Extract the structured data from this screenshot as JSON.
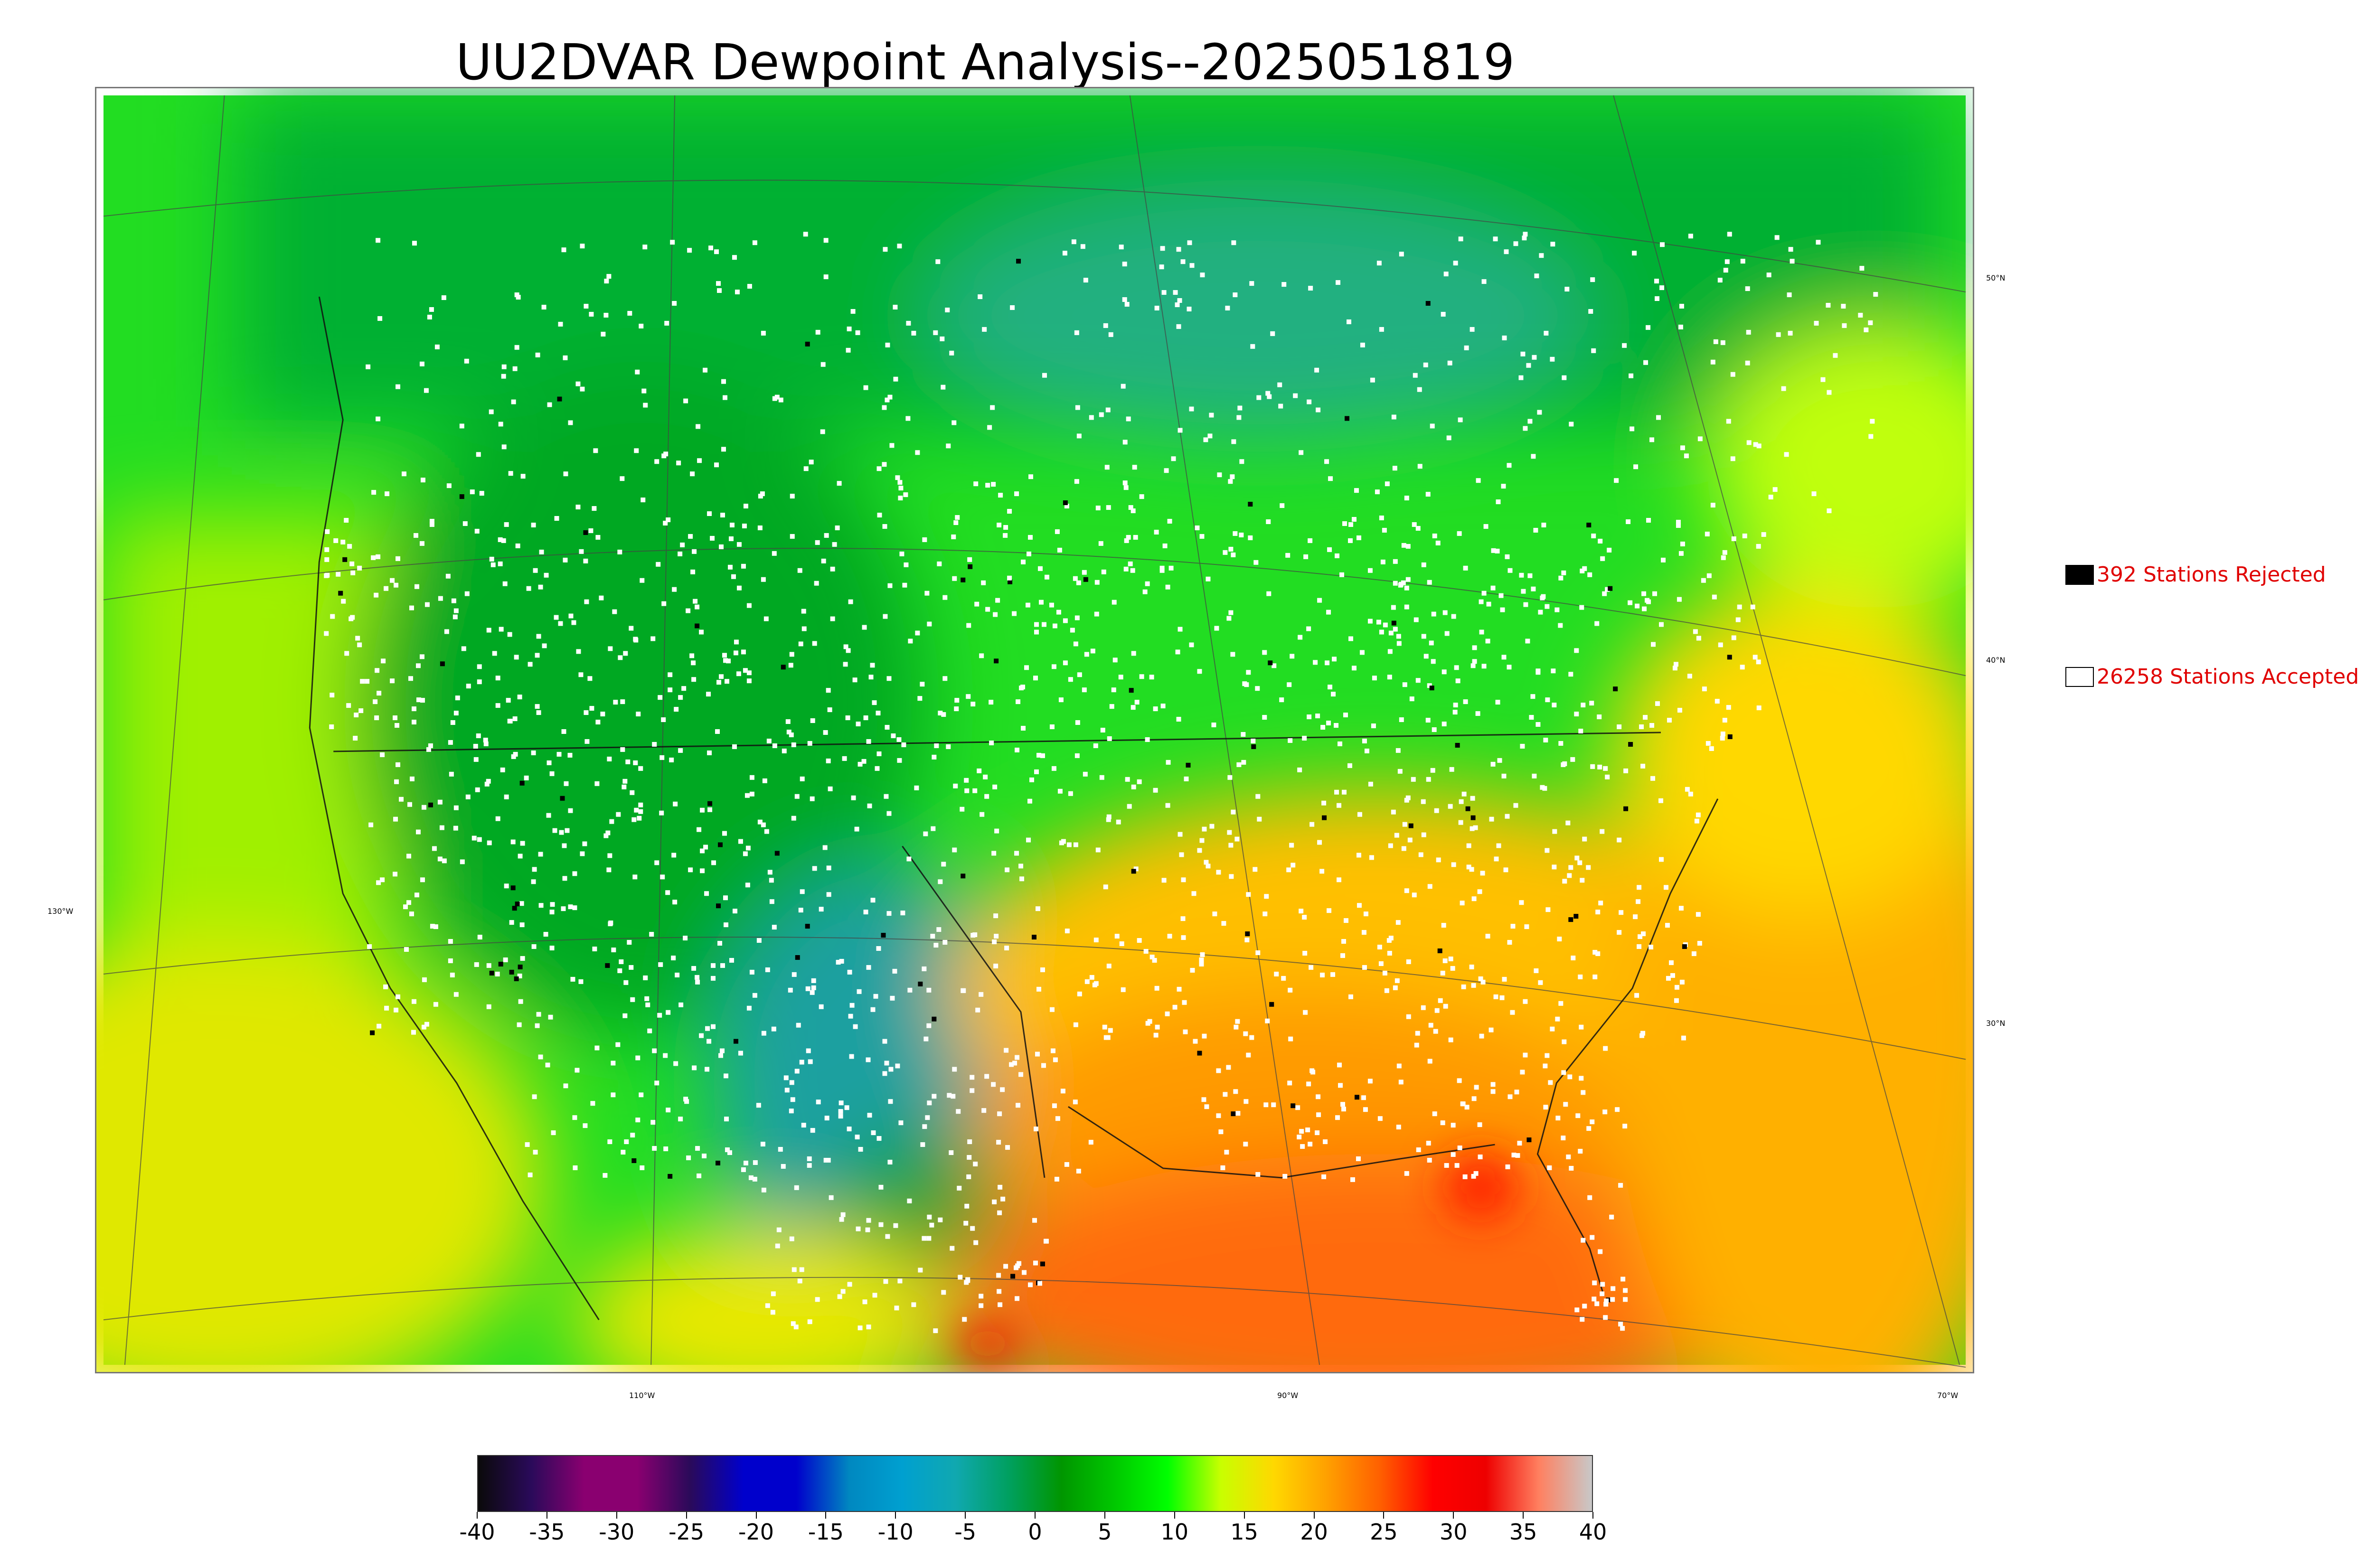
{
  "title": "UU2DVAR Dewpoint Analysis--2025051819",
  "legend": {
    "rejected": {
      "label": "392 Stations Rejected",
      "swatch_color": "#000000"
    },
    "accepted": {
      "label": "26258 Stations Accepted",
      "swatch_color": "#ffffff"
    }
  },
  "map": {
    "lat_labels": [
      "50°N",
      "40°N",
      "30°N"
    ],
    "lon_labels": [
      "130°W",
      "110°W",
      "90°W",
      "70°W"
    ],
    "station_color_accepted": "#ffffff",
    "station_color_rejected": "#000000"
  },
  "colorbar": {
    "ticks": [
      "-40",
      "-35",
      "-30",
      "-25",
      "-20",
      "-15",
      "-10",
      "-5",
      "0",
      "5",
      "10",
      "15",
      "20",
      "25",
      "30",
      "35",
      "40"
    ],
    "colors": [
      "#0a0a0a",
      "#2a0a5a",
      "#8a0070",
      "#8a0070",
      "#2a0a5a",
      "#0000cc",
      "#0000cc",
      "#0088c0",
      "#00a0d0",
      "#10a8b0",
      "#00a060",
      "#009600",
      "#00c800",
      "#00ff00",
      "#c8ff00",
      "#ffd800",
      "#ffa000",
      "#ff6000",
      "#ff0000",
      "#ee0000",
      "#ff8060",
      "#c8c8c8"
    ]
  }
}
